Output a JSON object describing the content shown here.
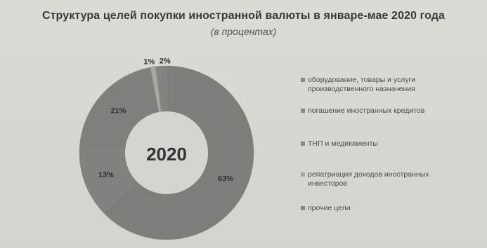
{
  "title": "Структура целей покупки иностранной валюты в январе-мае 2020 года",
  "subtitle": "(в процентах)",
  "chart_data": {
    "type": "pie",
    "donut": true,
    "center_label": "2020",
    "slices": [
      {
        "label": "оборудование, товары и услуги производственного назначения",
        "value": 63,
        "display": "63%",
        "color": "#7f7d79"
      },
      {
        "label": "погашение иностранных кредитов",
        "value": 13,
        "display": "13%",
        "color": "#83817d"
      },
      {
        "label": "ТНП и медикаменты",
        "value": 21,
        "display": "21%",
        "color": "#817f7b"
      },
      {
        "label": "репатриация доходов иностранных инвесторов",
        "value": 1,
        "display": "1%",
        "color": "#a9a7a2"
      },
      {
        "label": "прочие цели",
        "value": 2,
        "display": "2%",
        "color": "#858380"
      }
    ],
    "legend": [
      "оборудование, товары и услуги производственного назначения",
      "погашение иностранных кредитов",
      "ТНП и медикаменты",
      "репатриация доходов иностранных инвесторов",
      "прочие цели"
    ],
    "legend_placement": "right"
  }
}
